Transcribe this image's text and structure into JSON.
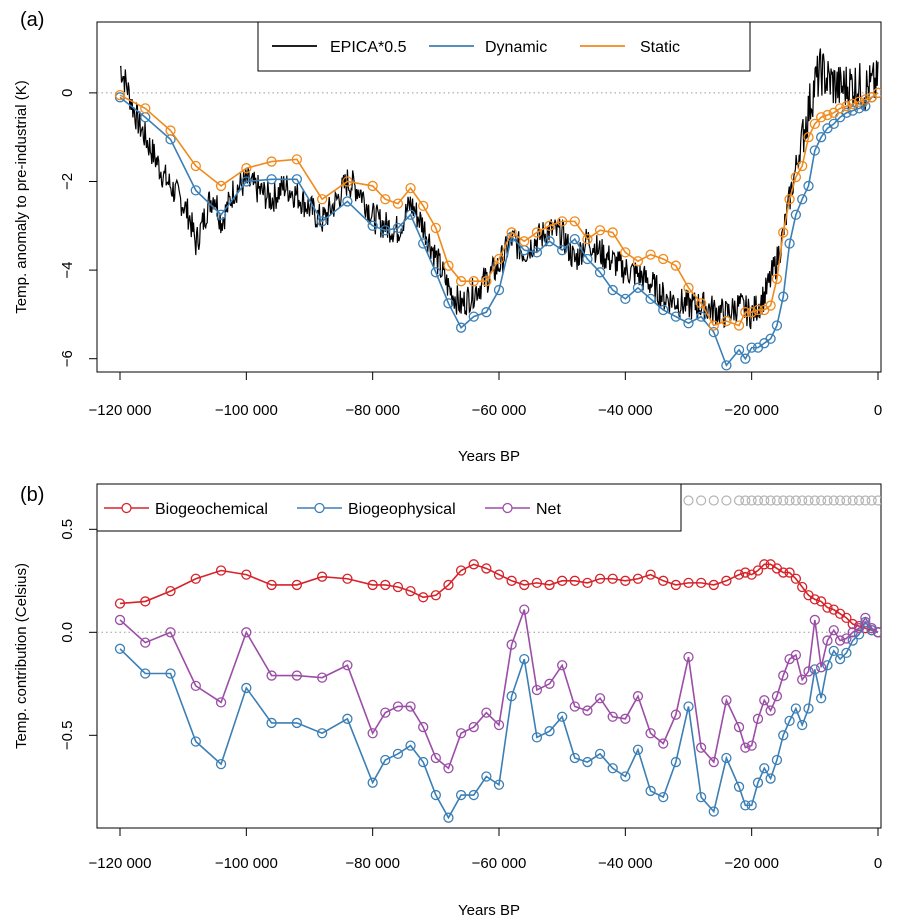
{
  "colors": {
    "epica": "#000000",
    "dynamic": "#3b7fb5",
    "static": "#f08a1c",
    "biogeochemical": "#d6232a",
    "biogeophysical": "#3b7fb5",
    "net": "#9b4ea6",
    "marker_row": "#b4b4b4",
    "zero_line": "#9a9a9a"
  },
  "chart_data": [
    {
      "panel_label": "(a)",
      "type": "line",
      "xlabel": "Years BP",
      "ylabel": "Temp. anomaly to pre-industrial (K)",
      "xlim": [
        -120000,
        0
      ],
      "ylim": [
        -6.3,
        1.6
      ],
      "x_ticks": [
        -120000,
        -100000,
        -80000,
        -60000,
        -40000,
        -20000,
        0
      ],
      "x_tick_labels": [
        "−120 000",
        "−100 000",
        "−80 000",
        "−60 000",
        "−40 000",
        "−20 000",
        "0"
      ],
      "y_ticks": [
        -6,
        -4,
        -2,
        0
      ],
      "y_tick_labels": [
        "−6",
        "−4",
        "−2",
        "0"
      ],
      "zero_line": true,
      "legend_position": "top-center",
      "legend": [
        "EPICA*0.5",
        "Dynamic",
        "Static"
      ],
      "series": [
        {
          "name": "EPICA*0.5",
          "style": "noisy-line",
          "x": [
            -120000,
            -119000,
            -118000,
            -117000,
            -116000,
            -115000,
            -114000,
            -113000,
            -112000,
            -111000,
            -110000,
            -109000,
            -108000,
            -107000,
            -106000,
            -105000,
            -104000,
            -103000,
            -102000,
            -101000,
            -100000,
            -98000,
            -96000,
            -94000,
            -92000,
            -90000,
            -88000,
            -86000,
            -84000,
            -82000,
            -80000,
            -78000,
            -76000,
            -74000,
            -72000,
            -70000,
            -68000,
            -66000,
            -64000,
            -62000,
            -60000,
            -58000,
            -56000,
            -54000,
            -52000,
            -50000,
            -48000,
            -46000,
            -44000,
            -42000,
            -40000,
            -38000,
            -36000,
            -34000,
            -32000,
            -30000,
            -28000,
            -26000,
            -24000,
            -22000,
            -20000,
            -18000,
            -17000,
            -16000,
            -15000,
            -14000,
            -13000,
            -12000,
            -11000,
            -10000,
            -9000,
            -8000,
            -6000,
            -4000,
            -2000,
            0
          ],
          "values": [
            0.6,
            0.2,
            -0.3,
            -0.7,
            -1.0,
            -1.3,
            -1.6,
            -1.9,
            -2.1,
            -2.3,
            -2.5,
            -2.8,
            -3.4,
            -3.0,
            -2.5,
            -2.3,
            -2.9,
            -2.6,
            -2.2,
            -2.1,
            -2.0,
            -2.2,
            -2.4,
            -2.1,
            -2.3,
            -2.6,
            -2.9,
            -2.5,
            -2.0,
            -2.2,
            -2.8,
            -3.0,
            -3.1,
            -2.5,
            -3.0,
            -3.7,
            -4.4,
            -4.8,
            -4.5,
            -4.2,
            -3.9,
            -3.3,
            -3.6,
            -3.3,
            -3.1,
            -3.2,
            -3.8,
            -3.3,
            -3.6,
            -3.8,
            -4.0,
            -4.1,
            -4.3,
            -4.6,
            -4.7,
            -4.8,
            -4.8,
            -4.9,
            -5.0,
            -4.8,
            -5.0,
            -4.6,
            -4.2,
            -3.8,
            -3.2,
            -2.4,
            -1.7,
            -1.0,
            -0.4,
            0.2,
            0.5,
            0.3,
            0.1,
            0.2,
            0.1,
            0.2
          ],
          "noise_amplitude": 0.35
        },
        {
          "name": "Dynamic",
          "x": [
            -120000,
            -116000,
            -112000,
            -108000,
            -104000,
            -100000,
            -96000,
            -92000,
            -88000,
            -84000,
            -80000,
            -78000,
            -76000,
            -74000,
            -72000,
            -70000,
            -68000,
            -66000,
            -64000,
            -62000,
            -60000,
            -58000,
            -56000,
            -54000,
            -52000,
            -50000,
            -48000,
            -46000,
            -44000,
            -42000,
            -40000,
            -38000,
            -36000,
            -34000,
            -32000,
            -30000,
            -28000,
            -26000,
            -24000,
            -22000,
            -21000,
            -20000,
            -19000,
            -18000,
            -17000,
            -16000,
            -15000,
            -14000,
            -13000,
            -12000,
            -11000,
            -10000,
            -9000,
            -8000,
            -7000,
            -6000,
            -5000,
            -4000,
            -3000,
            -2000,
            -1000,
            0
          ],
          "values": [
            -0.1,
            -0.55,
            -1.05,
            -2.2,
            -2.75,
            -2.0,
            -1.95,
            -1.95,
            -2.9,
            -2.45,
            -3.0,
            -3.1,
            -3.05,
            -2.75,
            -3.4,
            -4.05,
            -4.75,
            -5.3,
            -5.05,
            -4.95,
            -4.45,
            -3.25,
            -3.55,
            -3.6,
            -3.35,
            -3.55,
            -3.3,
            -3.75,
            -4.05,
            -4.45,
            -4.65,
            -4.4,
            -4.65,
            -4.9,
            -5.05,
            -5.2,
            -5.05,
            -5.4,
            -6.15,
            -5.8,
            -6.0,
            -5.75,
            -5.75,
            -5.65,
            -5.55,
            -5.25,
            -4.6,
            -3.4,
            -2.75,
            -2.4,
            -2.1,
            -1.3,
            -1.0,
            -0.8,
            -0.7,
            -0.55,
            -0.45,
            -0.4,
            -0.35,
            -0.3,
            -0.1,
            0.0
          ]
        },
        {
          "name": "Static",
          "x": [
            -120000,
            -116000,
            -112000,
            -108000,
            -104000,
            -100000,
            -96000,
            -92000,
            -88000,
            -84000,
            -80000,
            -78000,
            -76000,
            -74000,
            -72000,
            -70000,
            -68000,
            -66000,
            -64000,
            -62000,
            -60000,
            -58000,
            -56000,
            -54000,
            -52000,
            -50000,
            -48000,
            -46000,
            -44000,
            -42000,
            -40000,
            -38000,
            -36000,
            -34000,
            -32000,
            -30000,
            -28000,
            -26000,
            -24000,
            -22000,
            -21000,
            -20000,
            -19000,
            -18000,
            -17000,
            -16000,
            -15000,
            -14000,
            -13000,
            -12000,
            -11000,
            -10000,
            -9000,
            -8000,
            -7000,
            -6000,
            -5000,
            -4000,
            -3000,
            -2000,
            -1000,
            0
          ],
          "values": [
            -0.05,
            -0.35,
            -0.85,
            -1.65,
            -2.1,
            -1.7,
            -1.55,
            -1.5,
            -2.4,
            -2.0,
            -2.1,
            -2.4,
            -2.5,
            -2.15,
            -2.55,
            -3.05,
            -3.9,
            -4.25,
            -4.25,
            -4.25,
            -3.75,
            -3.15,
            -3.35,
            -3.15,
            -3.0,
            -2.9,
            -2.9,
            -3.3,
            -3.1,
            -3.15,
            -3.6,
            -3.8,
            -3.65,
            -3.75,
            -3.9,
            -4.4,
            -4.75,
            -5.25,
            -5.15,
            -5.25,
            -4.95,
            -4.95,
            -4.9,
            -4.9,
            -4.8,
            -4.2,
            -3.15,
            -2.4,
            -1.9,
            -1.65,
            -1.0,
            -0.7,
            -0.55,
            -0.5,
            -0.45,
            -0.35,
            -0.3,
            -0.25,
            -0.2,
            -0.15,
            -0.1,
            0.0
          ]
        }
      ]
    },
    {
      "panel_label": "(b)",
      "type": "line",
      "xlabel": "Years BP",
      "ylabel": "Temp. contribution (Celsius)",
      "xlim": [
        -120000,
        0
      ],
      "ylim": [
        -0.95,
        0.72
      ],
      "x_ticks": [
        -120000,
        -100000,
        -80000,
        -60000,
        -40000,
        -20000,
        0
      ],
      "x_tick_labels": [
        "−120 000",
        "−100 000",
        "−80 000",
        "−60 000",
        "−40 000",
        "−20 000",
        "0"
      ],
      "y_ticks": [
        -0.5,
        0.0,
        0.5
      ],
      "y_tick_labels": [
        "−0.5",
        "0.0",
        "0.5"
      ],
      "zero_line": true,
      "marker_row_value": 0.64,
      "legend_position": "top-left",
      "legend": [
        "Biogeochemical",
        "Biogeophysical",
        "Net"
      ],
      "x": [
        -120000,
        -116000,
        -112000,
        -108000,
        -104000,
        -100000,
        -96000,
        -92000,
        -88000,
        -84000,
        -80000,
        -78000,
        -76000,
        -74000,
        -72000,
        -70000,
        -68000,
        -66000,
        -64000,
        -62000,
        -60000,
        -58000,
        -56000,
        -54000,
        -52000,
        -50000,
        -48000,
        -46000,
        -44000,
        -42000,
        -40000,
        -38000,
        -36000,
        -34000,
        -32000,
        -30000,
        -28000,
        -26000,
        -24000,
        -22000,
        -21000,
        -20000,
        -19000,
        -18000,
        -17000,
        -16000,
        -15000,
        -14000,
        -13000,
        -12000,
        -11000,
        -10000,
        -9000,
        -8000,
        -7000,
        -6000,
        -5000,
        -4000,
        -3000,
        -2000,
        -1000,
        0
      ],
      "series": [
        {
          "name": "Biogeochemical",
          "values": [
            0.14,
            0.15,
            0.2,
            0.26,
            0.3,
            0.28,
            0.23,
            0.23,
            0.27,
            0.26,
            0.23,
            0.23,
            0.22,
            0.2,
            0.17,
            0.18,
            0.23,
            0.3,
            0.33,
            0.31,
            0.28,
            0.25,
            0.23,
            0.24,
            0.23,
            0.25,
            0.25,
            0.24,
            0.26,
            0.26,
            0.25,
            0.26,
            0.28,
            0.25,
            0.23,
            0.24,
            0.24,
            0.23,
            0.25,
            0.28,
            0.29,
            0.28,
            0.3,
            0.33,
            0.33,
            0.31,
            0.29,
            0.29,
            0.26,
            0.22,
            0.18,
            0.16,
            0.15,
            0.12,
            0.11,
            0.09,
            0.07,
            0.04,
            0.03,
            0.02,
            0.01,
            0.0
          ]
        },
        {
          "name": "Biogeophysical",
          "values": [
            -0.08,
            -0.2,
            -0.2,
            -0.53,
            -0.64,
            -0.27,
            -0.44,
            -0.44,
            -0.49,
            -0.42,
            -0.73,
            -0.62,
            -0.59,
            -0.55,
            -0.63,
            -0.79,
            -0.9,
            -0.79,
            -0.79,
            -0.7,
            -0.74,
            -0.31,
            -0.13,
            -0.51,
            -0.48,
            -0.41,
            -0.61,
            -0.63,
            -0.59,
            -0.66,
            -0.7,
            -0.57,
            -0.77,
            -0.8,
            -0.63,
            -0.36,
            -0.8,
            -0.87,
            -0.61,
            -0.75,
            -0.84,
            -0.84,
            -0.73,
            -0.66,
            -0.71,
            -0.62,
            -0.5,
            -0.43,
            -0.37,
            -0.45,
            -0.37,
            -0.18,
            -0.32,
            -0.16,
            -0.09,
            -0.13,
            -0.1,
            -0.04,
            -0.01,
            0.05,
            0.01,
            0.0
          ]
        },
        {
          "name": "Net",
          "values": [
            0.06,
            -0.05,
            0.0,
            -0.26,
            -0.34,
            0.0,
            -0.21,
            -0.21,
            -0.22,
            -0.16,
            -0.49,
            -0.39,
            -0.36,
            -0.36,
            -0.46,
            -0.61,
            -0.66,
            -0.49,
            -0.46,
            -0.39,
            -0.45,
            -0.06,
            0.11,
            -0.28,
            -0.25,
            -0.16,
            -0.36,
            -0.38,
            -0.32,
            -0.41,
            -0.42,
            -0.31,
            -0.49,
            -0.54,
            -0.4,
            -0.12,
            -0.56,
            -0.63,
            -0.33,
            -0.46,
            -0.56,
            -0.55,
            -0.42,
            -0.33,
            -0.38,
            -0.31,
            -0.21,
            -0.13,
            -0.11,
            -0.23,
            -0.19,
            0.06,
            -0.17,
            -0.04,
            0.01,
            -0.04,
            -0.03,
            0.0,
            0.02,
            0.07,
            0.02,
            0.0
          ]
        }
      ]
    }
  ]
}
